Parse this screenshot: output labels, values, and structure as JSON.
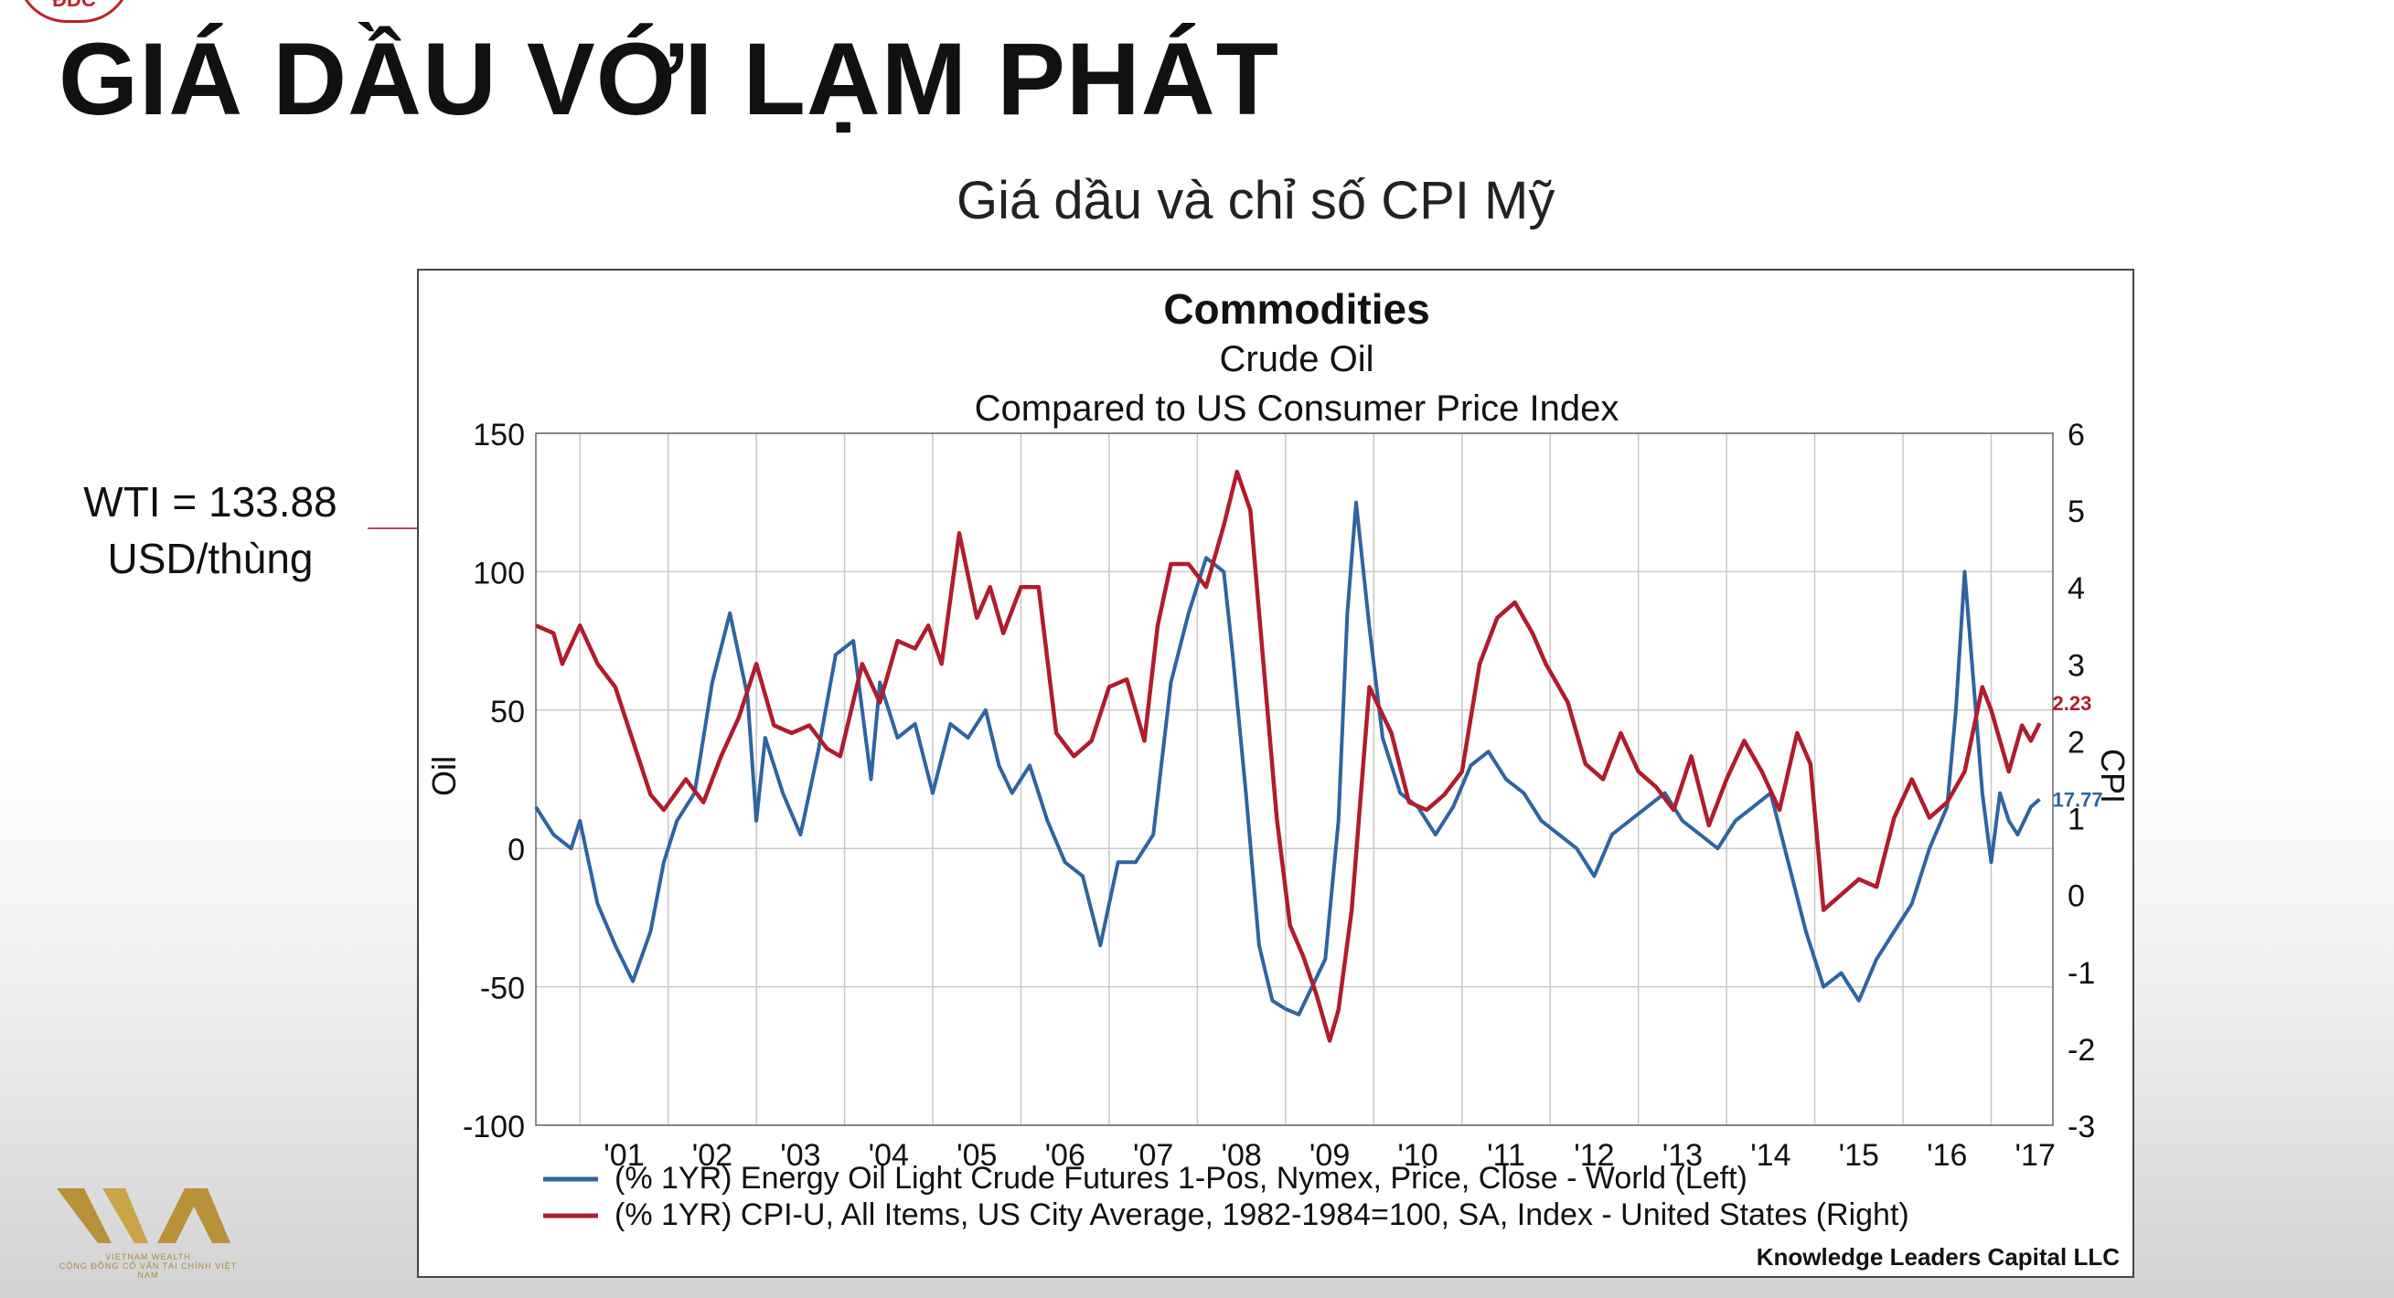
{
  "slide": {
    "logo_text": "ĐDC",
    "title": "GIÁ DẦU VỚI LẠM PHÁT",
    "subtitle": "Giá dầu và chỉ số CPI Mỹ",
    "callout_line1": "WTI = 133.88",
    "callout_line2": "USD/thùng",
    "brand_text": "VIETNAM WEALTH",
    "brand_tagline": "CỘNG ĐỒNG CỐ VẤN TÀI CHÍNH VIỆT NAM"
  },
  "colors": {
    "oil": "#2e64a0",
    "cpi": "#b01c2e",
    "grid": "#c8c8c8",
    "arrow": "#b05060",
    "accent_gold": "#b8923a"
  },
  "chart_data": {
    "type": "line",
    "title": "Commodities",
    "subtitle_line1": "Crude Oil",
    "subtitle_line2": "Compared to US Consumer Price Index",
    "ylabel_left": "Oil",
    "ylabel_right": "CPI",
    "ylim_left": [
      -100,
      150
    ],
    "ylim_right": [
      -3,
      6
    ],
    "yticks_left": [
      "150",
      "100",
      "50",
      "0",
      "-50",
      "-100"
    ],
    "yticks_right": [
      "6",
      "5",
      "4",
      "3",
      "2",
      "1",
      "0",
      "-1",
      "-2",
      "-3"
    ],
    "xlim": [
      2000.5,
      2017.7
    ],
    "xticks": [
      "'01",
      "'02",
      "'03",
      "'04",
      "'05",
      "'06",
      "'07",
      "'08",
      "'09",
      "'10",
      "'11",
      "'12",
      "'13",
      "'14",
      "'15",
      "'16",
      "'17"
    ],
    "grid": true,
    "legend_position": "bottom",
    "source": "Knowledge Leaders Capital LLC",
    "series": [
      {
        "name": "(% 1YR) Energy Oil Light Crude Futures 1-Pos, Nymex, Price, Close - World  (Left)",
        "axis": "left",
        "last_label": "17.77",
        "x": [
          2000.5,
          2000.7,
          2000.9,
          2001.0,
          2001.2,
          2001.4,
          2001.6,
          2001.8,
          2001.95,
          2002.1,
          2002.3,
          2002.5,
          2002.7,
          2002.9,
          2003.0,
          2003.1,
          2003.3,
          2003.5,
          2003.7,
          2003.9,
          2004.1,
          2004.3,
          2004.4,
          2004.6,
          2004.8,
          2005.0,
          2005.2,
          2005.4,
          2005.6,
          2005.75,
          2005.9,
          2006.1,
          2006.3,
          2006.5,
          2006.7,
          2006.9,
          2007.1,
          2007.3,
          2007.5,
          2007.7,
          2007.9,
          2008.1,
          2008.3,
          2008.4,
          2008.55,
          2008.7,
          2008.85,
          2009.0,
          2009.15,
          2009.3,
          2009.45,
          2009.6,
          2009.7,
          2009.8,
          2009.95,
          2010.1,
          2010.3,
          2010.5,
          2010.7,
          2010.9,
          2011.1,
          2011.3,
          2011.5,
          2011.7,
          2011.9,
          2012.1,
          2012.3,
          2012.5,
          2012.7,
          2012.9,
          2013.1,
          2013.3,
          2013.5,
          2013.7,
          2013.9,
          2014.1,
          2014.3,
          2014.5,
          2014.7,
          2014.9,
          2015.1,
          2015.3,
          2015.5,
          2015.7,
          2015.9,
          2016.1,
          2016.3,
          2016.5,
          2016.6,
          2016.7,
          2016.8,
          2016.9,
          2017.0,
          2017.1,
          2017.2,
          2017.3,
          2017.45,
          2017.55
        ],
        "values": [
          15,
          5,
          0,
          10,
          -20,
          -35,
          -48,
          -30,
          -5,
          10,
          20,
          60,
          85,
          55,
          10,
          40,
          20,
          5,
          35,
          70,
          75,
          25,
          60,
          40,
          45,
          20,
          45,
          40,
          50,
          30,
          20,
          30,
          10,
          -5,
          -10,
          -35,
          -5,
          -5,
          5,
          60,
          85,
          105,
          100,
          70,
          20,
          -35,
          -55,
          -58,
          -60,
          -50,
          -40,
          10,
          85,
          125,
          80,
          40,
          20,
          15,
          5,
          15,
          30,
          35,
          25,
          20,
          10,
          5,
          0,
          -10,
          5,
          10,
          15,
          20,
          10,
          5,
          0,
          10,
          15,
          20,
          -5,
          -30,
          -50,
          -45,
          -55,
          -40,
          -30,
          -20,
          0,
          15,
          50,
          100,
          60,
          20,
          -5,
          20,
          10,
          5,
          15,
          17.77
        ]
      },
      {
        "name": "(% 1YR) CPI-U, All Items, US City Average, 1982-1984=100, SA, Index - United States  (Right)",
        "axis": "right",
        "last_label": "2.23",
        "x": [
          2000.5,
          2000.7,
          2000.8,
          2001.0,
          2001.2,
          2001.4,
          2001.6,
          2001.8,
          2001.95,
          2002.2,
          2002.4,
          2002.6,
          2002.8,
          2003.0,
          2003.2,
          2003.4,
          2003.6,
          2003.8,
          2003.95,
          2004.2,
          2004.4,
          2004.6,
          2004.8,
          2004.95,
          2005.1,
          2005.3,
          2005.5,
          2005.65,
          2005.8,
          2006.0,
          2006.2,
          2006.4,
          2006.6,
          2006.8,
          2007.0,
          2007.2,
          2007.4,
          2007.55,
          2007.7,
          2007.9,
          2008.1,
          2008.3,
          2008.45,
          2008.6,
          2008.75,
          2008.9,
          2009.05,
          2009.2,
          2009.35,
          2009.5,
          2009.6,
          2009.75,
          2009.95,
          2010.2,
          2010.4,
          2010.6,
          2010.8,
          2011.0,
          2011.2,
          2011.4,
          2011.6,
          2011.8,
          2011.95,
          2012.2,
          2012.4,
          2012.6,
          2012.8,
          2013.0,
          2013.2,
          2013.4,
          2013.6,
          2013.8,
          2014.0,
          2014.2,
          2014.4,
          2014.6,
          2014.8,
          2014.95,
          2015.1,
          2015.3,
          2015.5,
          2015.7,
          2015.9,
          2016.1,
          2016.3,
          2016.5,
          2016.7,
          2016.9,
          2017.0,
          2017.2,
          2017.35,
          2017.45,
          2017.55
        ],
        "values": [
          3.5,
          3.4,
          3.0,
          3.5,
          3.0,
          2.7,
          2.0,
          1.3,
          1.1,
          1.5,
          1.2,
          1.8,
          2.3,
          3.0,
          2.2,
          2.1,
          2.2,
          1.9,
          1.8,
          3.0,
          2.5,
          3.3,
          3.2,
          3.5,
          3.0,
          4.7,
          3.6,
          4.0,
          3.4,
          4.0,
          4.0,
          2.1,
          1.8,
          2.0,
          2.7,
          2.8,
          2.0,
          3.5,
          4.3,
          4.3,
          4.0,
          4.8,
          5.5,
          5.0,
          3.0,
          1.0,
          -0.4,
          -0.8,
          -1.3,
          -1.9,
          -1.5,
          -0.2,
          2.7,
          2.1,
          1.2,
          1.1,
          1.3,
          1.6,
          3.0,
          3.6,
          3.8,
          3.4,
          3.0,
          2.5,
          1.7,
          1.5,
          2.1,
          1.6,
          1.4,
          1.1,
          1.8,
          0.9,
          1.5,
          2.0,
          1.6,
          1.1,
          2.1,
          1.7,
          -0.2,
          0.0,
          0.2,
          0.1,
          1.0,
          1.5,
          1.0,
          1.2,
          1.6,
          2.7,
          2.4,
          1.6,
          2.2,
          2.0,
          2.23
        ]
      }
    ]
  }
}
